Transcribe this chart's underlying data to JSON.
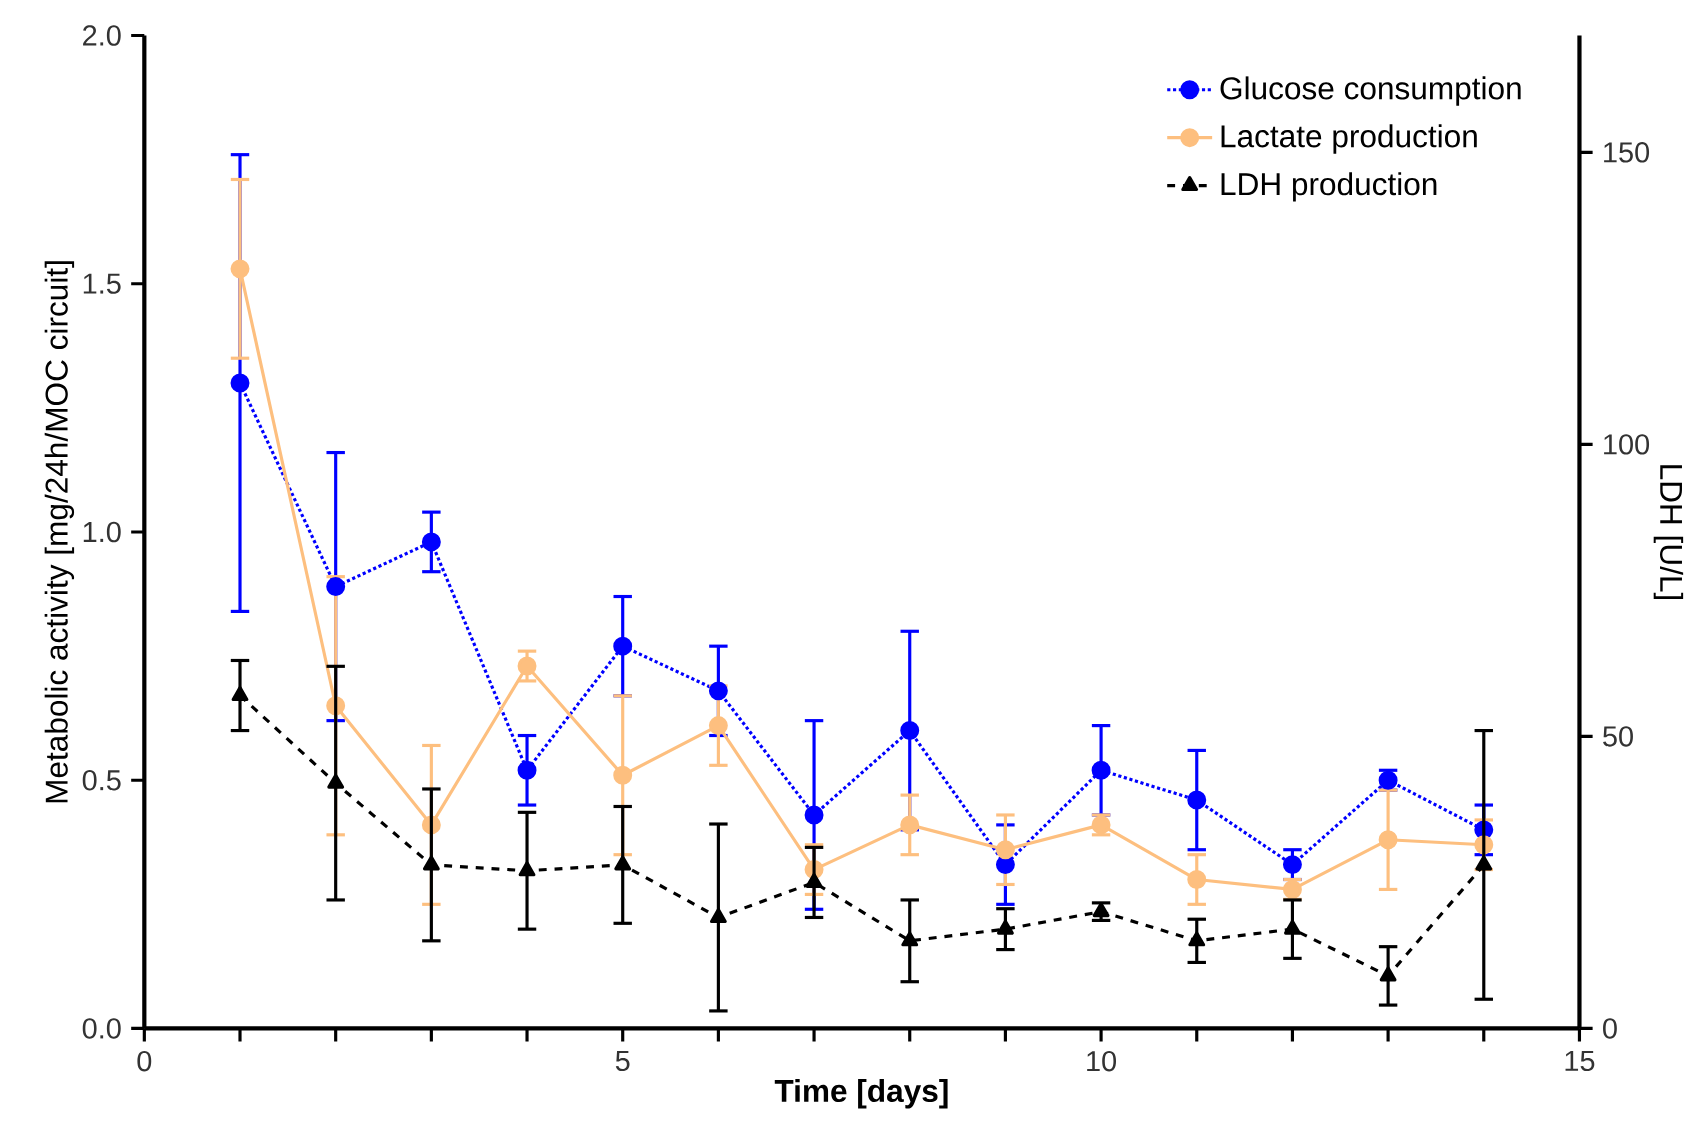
{
  "chart_data": {
    "type": "line",
    "xlabel": "Time [days]",
    "ylabel": "Metabolic activity [mg/24h/MOC circuit]",
    "y2label": "LDH [U/L]",
    "xlim": [
      0,
      15
    ],
    "xticks": [
      0,
      {
        "value": 1,
        "label": null
      },
      {
        "value": 2,
        "label": null
      },
      {
        "value": 3,
        "label": null
      },
      {
        "value": 4,
        "label": null
      },
      5,
      {
        "value": 6,
        "label": null
      },
      {
        "value": 7,
        "label": null
      },
      {
        "value": 8,
        "label": null
      },
      {
        "value": 9,
        "label": null
      },
      10,
      {
        "value": 11,
        "label": null
      },
      {
        "value": 12,
        "label": null
      },
      {
        "value": 13,
        "label": null
      },
      {
        "value": 14,
        "label": null
      },
      15
    ],
    "ylim": [
      0,
      2
    ],
    "yticks": [
      {
        "value": 0,
        "label": "0.0"
      },
      {
        "value": 0.5,
        "label": "0.5"
      },
      {
        "value": 1,
        "label": "1.0"
      },
      {
        "value": 1.5,
        "label": "1.5"
      },
      {
        "value": 2,
        "label": "2.0"
      }
    ],
    "y2lim": [
      0,
      170
    ],
    "y2ticks": [
      0,
      50,
      100,
      150
    ],
    "legend": "top right",
    "grid": false,
    "x": [
      1,
      2,
      3,
      4,
      5,
      6,
      7,
      8,
      9,
      10,
      11,
      12,
      13,
      14
    ],
    "series": [
      {
        "name": "Glucose consumption",
        "color": "#0000ff",
        "marker": "circle",
        "line_style": "dotted",
        "values": [
          1.3,
          0.89,
          0.98,
          0.52,
          0.77,
          0.68,
          0.43,
          0.6,
          0.33,
          0.52,
          0.46,
          0.33,
          0.5,
          0.4
        ],
        "errors": [
          0.46,
          0.27,
          0.06,
          0.07,
          0.1,
          0.09,
          0.19,
          0.2,
          0.08,
          0.09,
          0.1,
          0.03,
          0.02,
          0.05
        ]
      },
      {
        "name": "Lactate production",
        "color": "#fdbf7f",
        "marker": "circle",
        "line_style": "solid",
        "values": [
          1.53,
          0.65,
          0.41,
          0.73,
          0.51,
          0.61,
          0.32,
          0.41,
          0.36,
          0.41,
          0.3,
          0.28,
          0.38,
          0.37
        ],
        "errors": [
          0.18,
          0.26,
          0.16,
          0.03,
          0.16,
          0.08,
          0.05,
          0.06,
          0.07,
          0.02,
          0.05,
          0.02,
          0.1,
          0.05
        ]
      },
      {
        "name": "LDH production",
        "color": "#000000",
        "marker": "triangle",
        "line_style": "dashed",
        "axis": "y2",
        "values": [
          57,
          42,
          28,
          27,
          28,
          19,
          25,
          15,
          17,
          20,
          15,
          17,
          9,
          28
        ],
        "errors": [
          6,
          20,
          13,
          10,
          10,
          16,
          6,
          7,
          3.5,
          1.5,
          3.7,
          5,
          5,
          23
        ]
      }
    ]
  }
}
